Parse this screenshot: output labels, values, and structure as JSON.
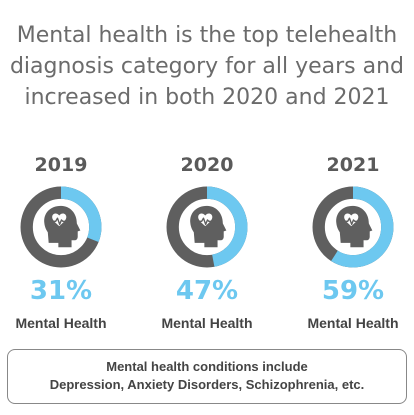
{
  "title_lines": [
    "Mental health is the top telehealth",
    "diagnosis category for all years and",
    "increased in both 2020 and 2021"
  ],
  "colors": {
    "ring_fill": "#6dc8f0",
    "ring_rest": "#5f5f5f",
    "icon": "#5f5f5f",
    "pct_text": "#6dc8f0"
  },
  "icon_name": "head-with-heartbeat-icon",
  "chart_data": {
    "type": "donut",
    "title": "Mental health is the top telehealth diagnosis category for all years and increased in both 2020 and 2021",
    "categories": [
      "2019",
      "2020",
      "2021"
    ],
    "series": [
      {
        "name": "Mental Health",
        "values": [
          31,
          47,
          59
        ]
      }
    ],
    "unit": "%",
    "panels": [
      {
        "year": "2019",
        "value": 31,
        "pct_label": "31%",
        "label": "Mental Health"
      },
      {
        "year": "2020",
        "value": 47,
        "pct_label": "47%",
        "label": "Mental Health"
      },
      {
        "year": "2021",
        "value": 59,
        "pct_label": "59%",
        "label": "Mental Health"
      }
    ]
  },
  "note": {
    "line1": "Mental health conditions include",
    "line2": "Depression, Anxiety Disorders, Schizophrenia, etc."
  }
}
